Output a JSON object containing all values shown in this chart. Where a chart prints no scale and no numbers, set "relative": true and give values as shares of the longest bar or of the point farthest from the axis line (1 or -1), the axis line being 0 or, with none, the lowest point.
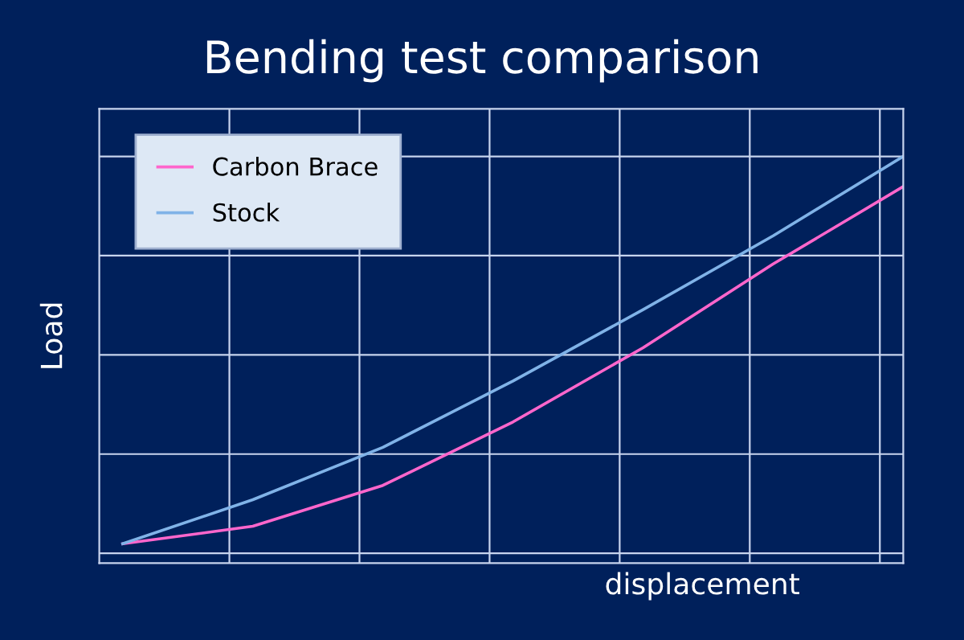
{
  "chart_data": {
    "type": "line",
    "title": "Bending test comparison",
    "xlabel": "displacement",
    "ylabel": "Load",
    "relative": true,
    "grid": true,
    "legend": "top left",
    "marker": "none",
    "line_style": "solid",
    "categories": [
      null,
      null,
      null,
      null,
      null,
      null,
      null
    ],
    "series": [
      {
        "name": "Carbon Brace",
        "color": "#ff66cc",
        "values": [
          0.024,
          0.068,
          0.171,
          0.331,
          0.518,
          0.729,
          0.924
        ]
      },
      {
        "name": "Stock",
        "color": "#80b3e8",
        "values": [
          0.024,
          0.135,
          0.267,
          0.434,
          0.614,
          0.8,
          1
        ]
      }
    ]
  }
}
